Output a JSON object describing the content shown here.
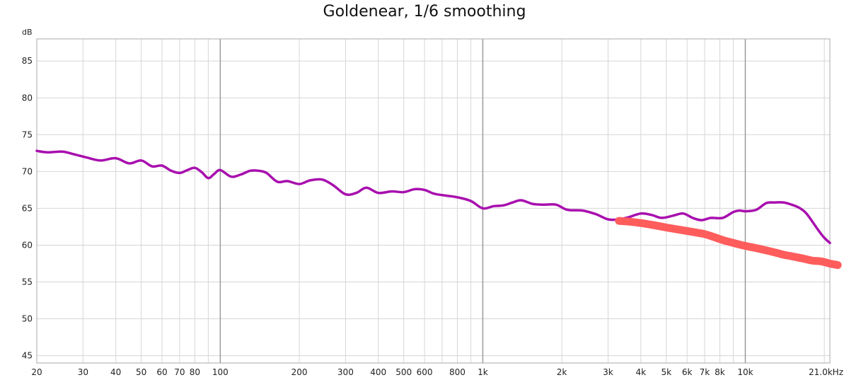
{
  "chart_data": {
    "type": "line",
    "title": "Goldenear, 1/6 smoothing",
    "ylabel": "dB",
    "xlabel": "",
    "x_scale": "log",
    "xlim": [
      20,
      21000
    ],
    "ylim": [
      44,
      88
    ],
    "grid": true,
    "y_ticks": [
      45,
      50,
      55,
      60,
      65,
      70,
      75,
      80,
      85
    ],
    "x_ticks": [
      {
        "value": 20,
        "label": "20"
      },
      {
        "value": 30,
        "label": "30"
      },
      {
        "value": 40,
        "label": "40"
      },
      {
        "value": 50,
        "label": "50"
      },
      {
        "value": 60,
        "label": "60"
      },
      {
        "value": 70,
        "label": "70"
      },
      {
        "value": 80,
        "label": "80"
      },
      {
        "value": 100,
        "label": "100"
      },
      {
        "value": 200,
        "label": "200"
      },
      {
        "value": 300,
        "label": "300"
      },
      {
        "value": 400,
        "label": "400"
      },
      {
        "value": 500,
        "label": "500"
      },
      {
        "value": 600,
        "label": "600"
      },
      {
        "value": 800,
        "label": "800"
      },
      {
        "value": 1000,
        "label": "1k"
      },
      {
        "value": 2000,
        "label": "2k"
      },
      {
        "value": 3000,
        "label": "3k"
      },
      {
        "value": 4000,
        "label": "4k"
      },
      {
        "value": 5000,
        "label": "5k"
      },
      {
        "value": 6000,
        "label": "6k"
      },
      {
        "value": 7000,
        "label": "7k"
      },
      {
        "value": 8000,
        "label": "8k"
      },
      {
        "value": 10000,
        "label": "10k"
      },
      {
        "value": 21000,
        "label": "21.0kHz"
      }
    ],
    "x_gridlines_minor": [
      20,
      30,
      40,
      50,
      60,
      70,
      80,
      90,
      200,
      300,
      400,
      500,
      600,
      700,
      800,
      900,
      2000,
      3000,
      4000,
      5000,
      6000,
      7000,
      8000,
      9000,
      20000
    ],
    "x_gridlines_major": [
      100,
      1000,
      10000
    ],
    "series": [
      {
        "color": "#a80fae",
        "x": [
          20,
          22,
          25,
          28,
          31,
          35,
          40,
          45,
          50,
          55,
          60,
          65,
          70,
          75,
          80,
          85,
          90,
          95,
          100,
          110,
          120,
          130,
          140,
          150,
          165,
          180,
          200,
          220,
          245,
          270,
          300,
          330,
          360,
          400,
          450,
          500,
          550,
          600,
          650,
          700,
          800,
          900,
          1000,
          1100,
          1200,
          1300,
          1400,
          1550,
          1700,
          1900,
          2100,
          2400,
          2700,
          3000,
          3300,
          3600,
          4000,
          4400,
          4800,
          5300,
          5800,
          6300,
          6800,
          7400,
          8200,
          9000,
          9500,
          10000,
          11000,
          12000,
          13000,
          14000,
          15000,
          16000,
          17000,
          18000,
          19000,
          20000,
          21000
        ],
        "y": [
          72.8,
          72.6,
          72.7,
          72.3,
          71.9,
          71.5,
          71.8,
          71.1,
          71.5,
          70.7,
          70.8,
          70.1,
          69.8,
          70.2,
          70.5,
          69.9,
          69.1,
          69.7,
          70.2,
          69.3,
          69.6,
          70.1,
          70.1,
          69.8,
          68.6,
          68.7,
          68.3,
          68.8,
          68.9,
          68.1,
          66.9,
          67.1,
          67.8,
          67.1,
          67.3,
          67.2,
          67.6,
          67.5,
          67.0,
          66.8,
          66.5,
          66.0,
          65.0,
          65.3,
          65.4,
          65.8,
          66.1,
          65.6,
          65.5,
          65.5,
          64.8,
          64.7,
          64.2,
          63.5,
          63.5,
          63.8,
          64.3,
          64.1,
          63.7,
          64.0,
          64.3,
          63.7,
          63.4,
          63.7,
          63.7,
          64.5,
          64.7,
          64.6,
          64.8,
          65.7,
          65.8,
          65.8,
          65.5,
          65.1,
          64.4,
          63.2,
          62.0,
          61.0,
          60.3
        ]
      },
      {
        "color": "#ff5c5c",
        "x": [
          3300,
          3600,
          4000,
          4500,
          5000,
          5600,
          6300,
          7000,
          7600,
          8200,
          9000,
          10000,
          11000,
          12000,
          13000,
          14000,
          15000,
          16000,
          17000,
          18000,
          19500,
          21000,
          22500
        ],
        "y": [
          63.3,
          63.2,
          63.0,
          62.7,
          62.4,
          62.1,
          61.8,
          61.5,
          61.1,
          60.7,
          60.3,
          59.9,
          59.6,
          59.3,
          59.0,
          58.7,
          58.5,
          58.3,
          58.1,
          57.9,
          57.8,
          57.5,
          57.3
        ]
      }
    ]
  }
}
